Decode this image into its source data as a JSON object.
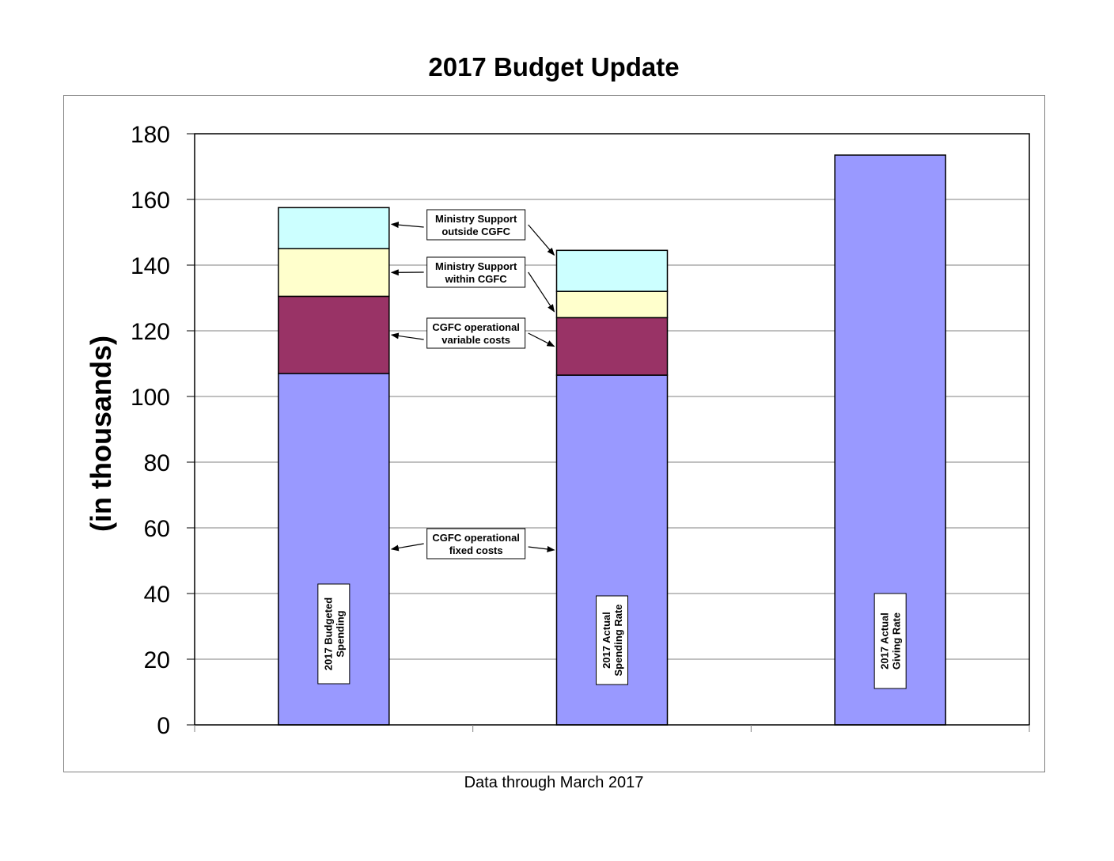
{
  "chart_data": {
    "type": "bar",
    "stacked": true,
    "title": "2017 Budget Update",
    "ylabel": "(in thousands)",
    "footnote": "Data through March 2017",
    "ylim": [
      0,
      180
    ],
    "yticks": [
      0,
      20,
      40,
      60,
      80,
      100,
      120,
      140,
      160,
      180
    ],
    "grid": true,
    "categories": [
      [
        "2017  Budgeted",
        "Spending"
      ],
      [
        "2017 Actual",
        "Spending Rate"
      ],
      [
        "2017 Actual",
        "Giving Rate"
      ]
    ],
    "series": [
      {
        "name": "CGFC operational fixed costs",
        "color": "#9999ff",
        "values": [
          107,
          106.5,
          173.5
        ]
      },
      {
        "name": "CGFC operational variable costs",
        "color": "#993366",
        "values": [
          23.5,
          17.5,
          0
        ]
      },
      {
        "name": "Ministry Support within  CGFC",
        "color": "#ffffcc",
        "values": [
          14.5,
          8,
          0
        ]
      },
      {
        "name": "Ministry Support outside CGFC",
        "color": "#ccffff",
        "values": [
          12.5,
          12.5,
          0
        ]
      }
    ],
    "annotations": [
      {
        "lines": [
          "Ministry Support",
          "outside CGFC"
        ]
      },
      {
        "lines": [
          "Ministry Support",
          "within  CGFC"
        ]
      },
      {
        "lines": [
          "CGFC operational",
          "variable costs"
        ]
      },
      {
        "lines": [
          "CGFC operational",
          "fixed costs"
        ]
      }
    ]
  }
}
